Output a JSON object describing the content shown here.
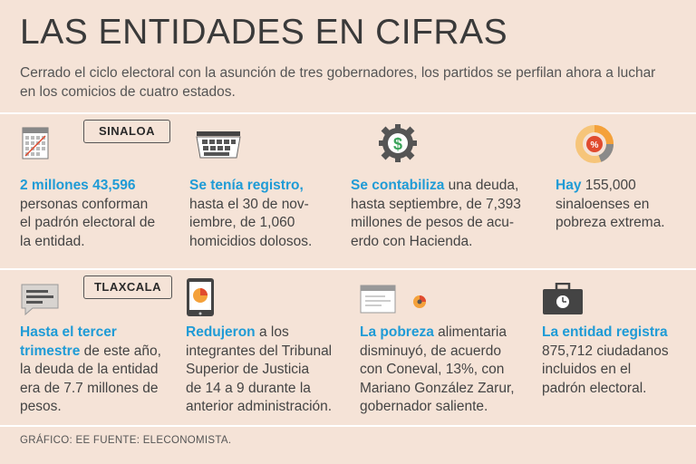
{
  "title": "LAS ENTIDADES EN CIFRAS",
  "subtitle": "Cerrado el ciclo electoral con la asunción de tres gobernadores, los partidos se perfilan ahora a luchar en los comicios de cuatro estados.",
  "sections": [
    {
      "tag": "SINALOA",
      "items": [
        {
          "icon": "calendar-icon",
          "highlight": "2 millones 43,596",
          "lines": [
            "personas conforman",
            "el padrón electoral de",
            "la entidad."
          ]
        },
        {
          "icon": "keyboard-icon",
          "highlight": "Se tenía registro,",
          "lines": [
            "hasta el 30 de nov-",
            "iembre, de 1,060",
            "homicidios dolosos."
          ]
        },
        {
          "icon": "money-gear-icon",
          "highlight": "Se contabiliza",
          "rest_first": " una deuda,",
          "lines": [
            "hasta septiembre, de 7,393",
            "millones de pesos de acu-",
            "erdo con Hacienda."
          ]
        },
        {
          "icon": "percent-chart-icon",
          "highlight": "Hay",
          "rest_first": " 155,000",
          "lines": [
            "sinaloenses en",
            "pobreza extrema."
          ]
        }
      ]
    },
    {
      "tag": "TLAXCALA",
      "items": [
        {
          "icon": "message-icon",
          "highlight": "Hasta el tercer",
          "highlight2": "trimestre",
          "rest_second": " de este año,",
          "lines": [
            "la deuda de la entidad",
            "era de 7.7 millones de",
            "pesos."
          ]
        },
        {
          "icon": "tablet-icon",
          "highlight": "Redujeron",
          "rest_first": " a los",
          "lines": [
            "integrantes del Tribunal",
            "Superior de Justicia",
            "de 14 a 9 durante la",
            "anterior administración."
          ]
        },
        {
          "icon": "browser-pie-icon",
          "highlight": "La pobreza",
          "rest_first": " alimentaria",
          "lines": [
            "disminuyó, de acuerdo",
            "con Coneval, 13%, con",
            "Mariano González Zarur,",
            "gobernador saliente."
          ]
        },
        {
          "icon": "briefcase-icon",
          "highlight": "La entidad registra",
          "lines": [
            "875,712 ciudadanos",
            "incluidos en el",
            "padrón electoral."
          ]
        }
      ]
    }
  ],
  "credit": "GRÁFICO: EE  FUENTE: ELECONOMISTA.",
  "colors": {
    "background": "#f5e3d7",
    "accent": "#1f9bd6",
    "text": "#444444",
    "orange": "#f4a13a",
    "red": "#e04b2f"
  }
}
